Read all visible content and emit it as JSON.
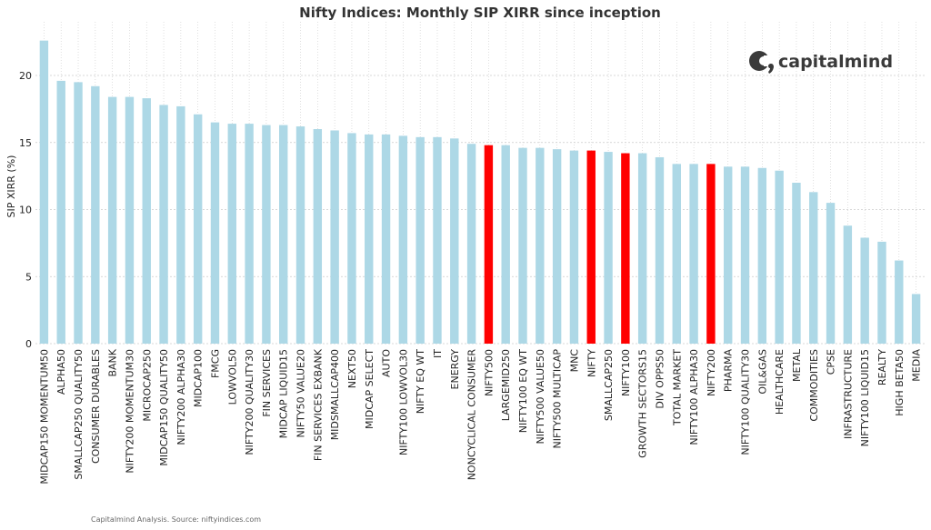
{
  "chart_data": {
    "type": "bar",
    "title": "Nifty Indices: Monthly SIP XIRR since inception",
    "xlabel": "",
    "ylabel": "SIP XIRR (%)",
    "ylim": [
      0,
      24
    ],
    "yticks": [
      0,
      5,
      10,
      15,
      20
    ],
    "grid": true,
    "categories": [
      "MIDCAP150 MOMENTUM50",
      "ALPHA50",
      "SMALLCAP250 QUALITY50",
      "CONSUMER DURABLES",
      "BANK",
      "NIFTY200 MOMENTUM30",
      "MICROCAP250",
      "MIDCAP150 QUALITY50",
      "NIFTY200 ALPHA30",
      "MIDCAP100",
      "FMCG",
      "LOWVOL50",
      "NIFTY200 QUALITY30",
      "FIN SERVICES",
      "MIDCAP LIQUID15",
      "NIFTY50 VALUE20",
      "FIN SERVICES EXBANK",
      "MIDSMALLCAP400",
      "NEXT50",
      "MIDCAP SELECT",
      "AUTO",
      "NIFTY100 LOWVOL30",
      "NIFTY EQ WT",
      "IT",
      "ENERGY",
      "NONCYCLICAL CONSUMER",
      "NIFTY500",
      "LARGEMID250",
      "NIFTY100 EQ WT",
      "NIFTY500 VALUE50",
      "NIFTY500 MULTICAP",
      "MNC",
      "NIFTY",
      "SMALLCAP250",
      "NIFTY100",
      "GROWTH SECTORS15",
      "DIV OPPS50",
      "TOTAL MARKET",
      "NIFTY100 ALPHA30",
      "NIFTY200",
      "PHARMA",
      "NIFTY100 QUALITY30",
      "OIL&GAS",
      "HEALTHCARE",
      "METAL",
      "COMMODITIES",
      "CPSE",
      "INFRASTRUCTURE",
      "NIFTY100 LIQUID15",
      "REALTY",
      "HIGH BETA50",
      "MEDIA"
    ],
    "values": [
      22.6,
      19.6,
      19.5,
      19.2,
      18.4,
      18.4,
      18.3,
      17.8,
      17.7,
      17.1,
      16.5,
      16.4,
      16.4,
      16.3,
      16.3,
      16.2,
      16.0,
      15.9,
      15.7,
      15.6,
      15.6,
      15.5,
      15.4,
      15.4,
      15.3,
      14.9,
      14.8,
      14.8,
      14.6,
      14.6,
      14.5,
      14.4,
      14.4,
      14.3,
      14.2,
      14.2,
      13.9,
      13.4,
      13.4,
      13.4,
      13.2,
      13.2,
      13.1,
      12.9,
      12.0,
      11.3,
      10.5,
      8.8,
      7.9,
      7.6,
      6.2,
      3.7
    ],
    "highlighted": [
      "NIFTY500",
      "NIFTY",
      "NIFTY100",
      "NIFTY200"
    ],
    "colors": {
      "bar": "#add8e6",
      "highlight": "#ff0000",
      "grid": "#cccccc"
    }
  },
  "brand": {
    "name": "capitalmind",
    "color": "#3a3a3a"
  },
  "footer": {
    "source": "Capitalmind Analysis. Source: niftyindices.com"
  }
}
